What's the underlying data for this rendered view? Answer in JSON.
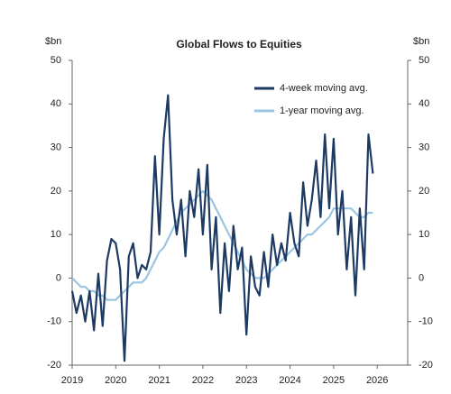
{
  "chart_data": {
    "type": "line",
    "title": "Global Flows to Equities",
    "y_label": "$bn",
    "y2_label": "$bn",
    "x": [
      2019.0,
      2019.1,
      2019.2,
      2019.3,
      2019.4,
      2019.5,
      2019.6,
      2019.7,
      2019.8,
      2019.9,
      2020.0,
      2020.1,
      2020.2,
      2020.3,
      2020.4,
      2020.5,
      2020.6,
      2020.7,
      2020.8,
      2020.9,
      2021.0,
      2021.1,
      2021.2,
      2021.3,
      2021.4,
      2021.5,
      2021.6,
      2021.7,
      2021.8,
      2021.9,
      2022.0,
      2022.1,
      2022.2,
      2022.3,
      2022.4,
      2022.5,
      2022.6,
      2022.7,
      2022.8,
      2022.9,
      2023.0,
      2023.1,
      2023.2,
      2023.3,
      2023.4,
      2023.5,
      2023.6,
      2023.7,
      2023.8,
      2023.9,
      2024.0,
      2024.1,
      2024.2,
      2024.3,
      2024.4,
      2024.5,
      2024.6,
      2024.7,
      2024.8,
      2024.9,
      2025.0,
      2025.1,
      2025.2,
      2025.3,
      2025.4,
      2025.5,
      2025.6,
      2025.7,
      2025.8,
      2025.9
    ],
    "series": [
      {
        "name": "4-week moving avg.",
        "color": "#1d3a63",
        "width": 2.2,
        "values": [
          -3,
          -8,
          -4,
          -10,
          -3,
          -12,
          1,
          -11,
          4,
          9,
          8,
          2,
          -19,
          5,
          8,
          0,
          3,
          2,
          6,
          28,
          10,
          32,
          42,
          18,
          10,
          18,
          5,
          20,
          14,
          25,
          10,
          26,
          2,
          14,
          -8,
          8,
          -3,
          12,
          2,
          7,
          -13,
          5,
          -2,
          -4,
          6,
          -2,
          10,
          3,
          8,
          4,
          15,
          8,
          5,
          22,
          12,
          18,
          27,
          14,
          33,
          16,
          32,
          10,
          20,
          2,
          14,
          -4,
          16,
          2,
          33,
          24
        ]
      },
      {
        "name": "1-year moving avg.",
        "color": "#9cc5e2",
        "width": 2.2,
        "values": [
          0,
          -1,
          -2,
          -2,
          -3,
          -3,
          -4,
          -4,
          -5,
          -5,
          -5,
          -4,
          -3,
          -2,
          -1,
          -1,
          -1,
          0,
          2,
          4,
          6,
          7,
          9,
          11,
          13,
          15,
          16,
          17,
          18,
          19,
          20,
          19,
          18,
          16,
          14,
          12,
          10,
          8,
          6,
          4,
          2,
          1,
          0,
          0,
          0,
          1,
          2,
          3,
          4,
          5,
          6,
          7,
          8,
          9,
          10,
          10,
          11,
          12,
          13,
          14,
          16,
          16,
          16,
          16,
          16,
          15,
          14,
          14,
          15,
          15
        ]
      }
    ],
    "xlim": [
      2019,
      2026.7
    ],
    "xticks": [
      2019,
      2020,
      2021,
      2022,
      2023,
      2024,
      2025,
      2026
    ],
    "ylim": [
      -20,
      50
    ],
    "yticks": [
      -20,
      -10,
      0,
      10,
      20,
      30,
      40,
      50
    ],
    "grid": false,
    "legend": "upper right"
  }
}
